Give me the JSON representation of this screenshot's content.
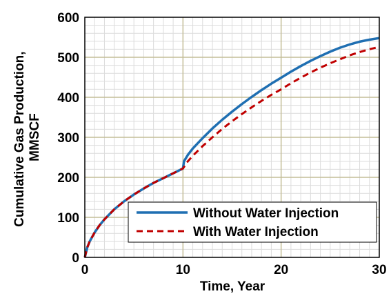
{
  "chart_data": {
    "type": "line",
    "title": "",
    "xlabel": "Time, Year",
    "ylabel_lines": [
      "Cumulative Gas Production,",
      "MMSCF"
    ],
    "xlim": [
      0,
      30
    ],
    "ylim": [
      0,
      600
    ],
    "x_ticks": [
      0,
      10,
      20,
      30
    ],
    "y_ticks": [
      0,
      100,
      200,
      300,
      400,
      500,
      600
    ],
    "grid": true,
    "legend_position": "bottom-right",
    "series": [
      {
        "name": "Without Water Injection",
        "color": "#1f6fb2",
        "style": "solid",
        "x": [
          0,
          0.25,
          0.5,
          1,
          1.5,
          2,
          3,
          4,
          5,
          6,
          7,
          8,
          9,
          10,
          10.1,
          10.5,
          11,
          12,
          13,
          14,
          15,
          16,
          17,
          18,
          19,
          20,
          21,
          22,
          23,
          24,
          25,
          26,
          27,
          28,
          29,
          30
        ],
        "y": [
          0,
          25,
          40,
          62,
          80,
          95,
          120,
          140,
          157,
          172,
          186,
          198,
          210,
          222,
          240,
          256,
          272,
          298,
          322,
          344,
          364,
          383,
          401,
          418,
          434,
          449,
          464,
          478,
          491,
          503,
          514,
          524,
          532,
          539,
          544,
          548
        ]
      },
      {
        "name": "With Water Injection",
        "color": "#c00000",
        "style": "dashed",
        "x": [
          0,
          0.25,
          0.5,
          1,
          1.5,
          2,
          3,
          4,
          5,
          6,
          7,
          8,
          9,
          10,
          10.5,
          11,
          12,
          13,
          14,
          15,
          16,
          17,
          18,
          19,
          20,
          21,
          22,
          23,
          24,
          25,
          26,
          27,
          28,
          29,
          30
        ],
        "y": [
          0,
          25,
          40,
          62,
          80,
          95,
          120,
          140,
          157,
          172,
          186,
          198,
          210,
          222,
          240,
          254,
          278,
          300,
          321,
          340,
          358,
          375,
          391,
          406,
          420,
          435,
          449,
          462,
          474,
          485,
          495,
          505,
          513,
          520,
          526
        ]
      }
    ]
  }
}
